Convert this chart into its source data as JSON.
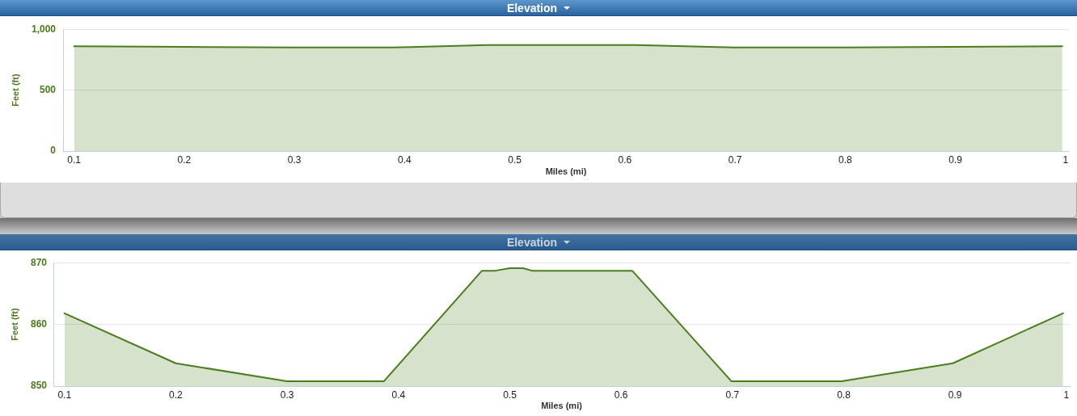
{
  "chart_data": [
    {
      "type": "area",
      "title": "Elevation",
      "xlabel": "Miles (mi)",
      "ylabel": "Feet (ft)",
      "x": [
        0.1,
        0.2,
        0.3,
        0.387,
        0.475,
        0.487,
        0.5,
        0.512,
        0.52,
        0.61,
        0.699,
        0.798,
        0.898,
        0.997
      ],
      "series": [
        {
          "color": "#4a7e1c",
          "values": [
            860,
            855,
            850,
            850,
            870,
            870,
            870,
            870,
            870,
            870,
            850,
            850,
            855,
            860
          ]
        }
      ],
      "xlim": [
        0.09,
        1.003
      ],
      "xticks": [
        0.1,
        0.2,
        0.3,
        0.4,
        0.5,
        0.6,
        0.7,
        0.8,
        0.9,
        1
      ],
      "ylim": [
        0,
        1000
      ],
      "yticks": [
        0,
        500,
        {
          "value": 1000,
          "label": "1,000"
        }
      ],
      "grid": "y"
    },
    {
      "type": "area",
      "title": "Elevation",
      "xlabel": "Miles (mi)",
      "ylabel": "Feet (ft)",
      "x": [
        0.1,
        0.2,
        0.3,
        0.387,
        0.475,
        0.487,
        0.5,
        0.512,
        0.52,
        0.61,
        0.699,
        0.798,
        0.898,
        0.997
      ],
      "series": [
        {
          "color": "#4a7e1c",
          "values": [
            861.8,
            853.7,
            850.8,
            850.8,
            868.7,
            868.7,
            869.1,
            869.1,
            868.7,
            868.7,
            850.8,
            850.8,
            853.7,
            861.8
          ]
        }
      ],
      "xlim": [
        0.09,
        1.003
      ],
      "xticks": [
        0.1,
        0.2,
        0.3,
        0.4,
        0.5,
        0.6,
        0.7,
        0.8,
        0.9,
        1
      ],
      "ylim": [
        850,
        870
      ],
      "yticks": [
        850,
        860,
        870
      ],
      "grid": "y"
    }
  ]
}
